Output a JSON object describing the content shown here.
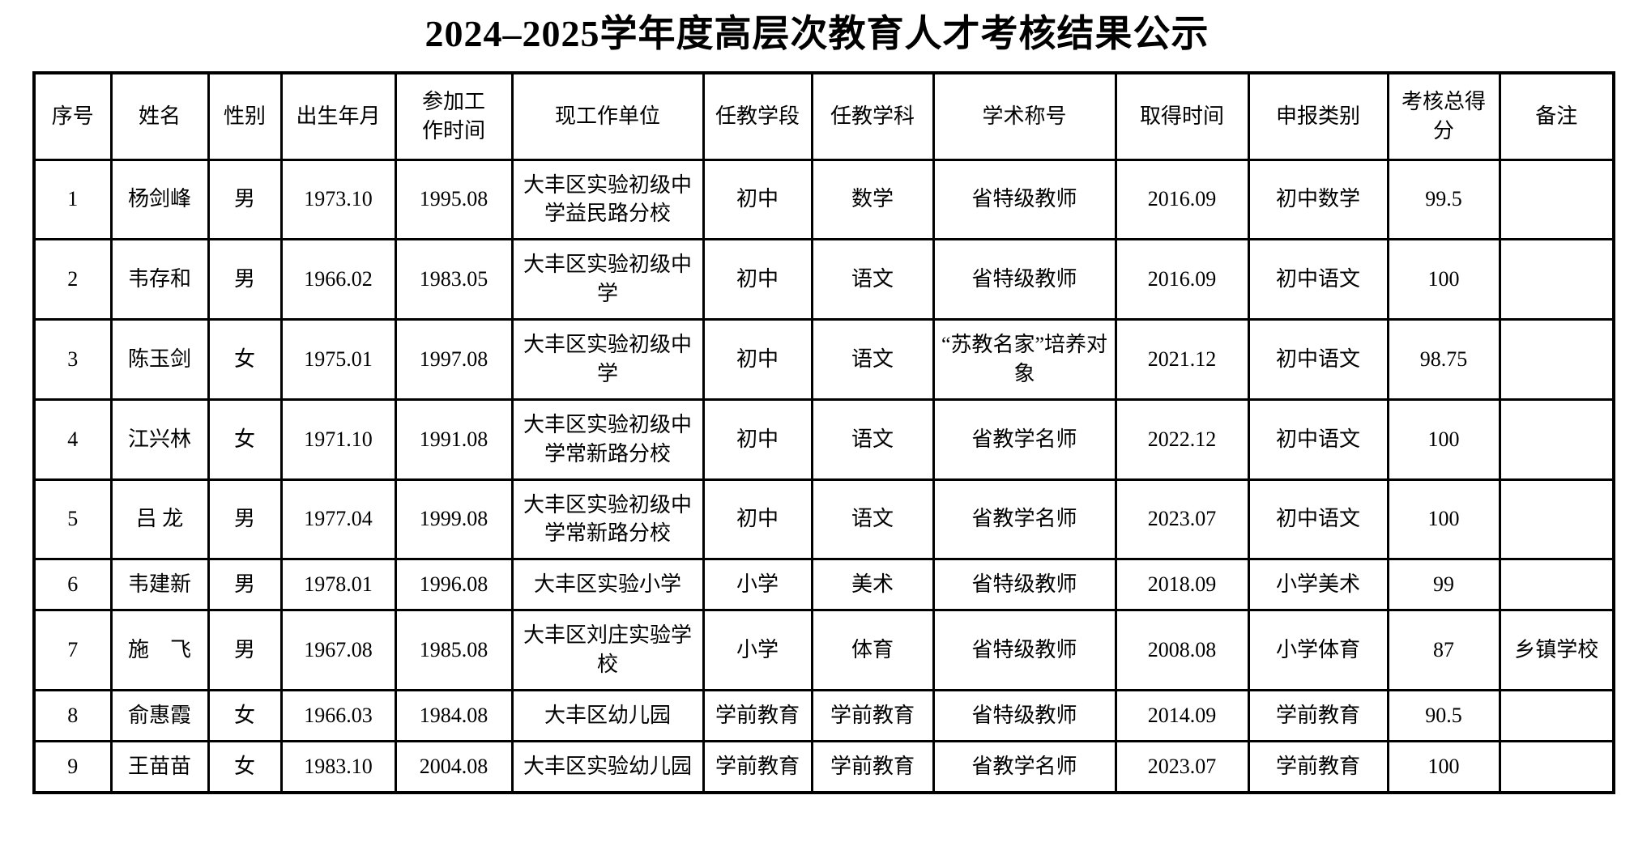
{
  "page": {
    "title": "2024–2025学年度高层次教育人才考核结果公示"
  },
  "table": {
    "columns": [
      {
        "id": "seq",
        "label": "序号"
      },
      {
        "id": "name",
        "label": "姓名"
      },
      {
        "id": "gender",
        "label": "性别"
      },
      {
        "id": "birth",
        "label": "出生年月"
      },
      {
        "id": "workstart",
        "label": "参加工\n作时间"
      },
      {
        "id": "unit",
        "label": "现工作单位"
      },
      {
        "id": "stage",
        "label": "任教学段"
      },
      {
        "id": "subject",
        "label": "任教学科"
      },
      {
        "id": "title",
        "label": "学术称号"
      },
      {
        "id": "obtained",
        "label": "取得时间"
      },
      {
        "id": "category",
        "label": "申报类别"
      },
      {
        "id": "score",
        "label": "考核总得\n分"
      },
      {
        "id": "remarks",
        "label": "备注"
      }
    ],
    "rows": [
      [
        "1",
        "杨剑峰",
        "男",
        "1973.10",
        "1995.08",
        "大丰区实验初级中学益民路分校",
        "初中",
        "数学",
        "省特级教师",
        "2016.09",
        "初中数学",
        "99.5",
        ""
      ],
      [
        "2",
        "韦存和",
        "男",
        "1966.02",
        "1983.05",
        "大丰区实验初级中学",
        "初中",
        "语文",
        "省特级教师",
        "2016.09",
        "初中语文",
        "100",
        ""
      ],
      [
        "3",
        "陈玉剑",
        "女",
        "1975.01",
        "1997.08",
        "大丰区实验初级中学",
        "初中",
        "语文",
        "“苏教名家”培养对象",
        "2021.12",
        "初中语文",
        "98.75",
        ""
      ],
      [
        "4",
        "江兴林",
        "女",
        "1971.10",
        "1991.08",
        "大丰区实验初级中学常新路分校",
        "初中",
        "语文",
        "省教学名师",
        "2022.12",
        "初中语文",
        "100",
        ""
      ],
      [
        "5",
        "吕 龙",
        "男",
        "1977.04",
        "1999.08",
        "大丰区实验初级中学常新路分校",
        "初中",
        "语文",
        "省教学名师",
        "2023.07",
        "初中语文",
        "100",
        ""
      ],
      [
        "6",
        "韦建新",
        "男",
        "1978.01",
        "1996.08",
        "大丰区实验小学",
        "小学",
        "美术",
        "省特级教师",
        "2018.09",
        "小学美术",
        "99",
        ""
      ],
      [
        "7",
        "施　飞",
        "男",
        "1967.08",
        "1985.08",
        "大丰区刘庄实验学校",
        "小学",
        "体育",
        "省特级教师",
        "2008.08",
        "小学体育",
        "87",
        "乡镇学校"
      ],
      [
        "8",
        "俞惠霞",
        "女",
        "1966.03",
        "1984.08",
        "大丰区幼儿园",
        "学前教育",
        "学前教育",
        "省特级教师",
        "2014.09",
        "学前教育",
        "90.5",
        ""
      ],
      [
        "9",
        "王苗苗",
        "女",
        "1983.10",
        "2004.08",
        "大丰区实验幼儿园",
        "学前教育",
        "学前教育",
        "省教学名师",
        "2023.07",
        "学前教育",
        "100",
        ""
      ]
    ]
  }
}
